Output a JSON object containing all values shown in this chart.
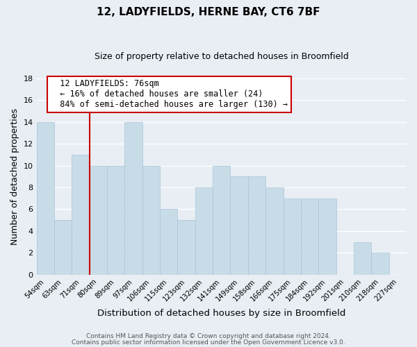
{
  "title": "12, LADYFIELDS, HERNE BAY, CT6 7BF",
  "subtitle": "Size of property relative to detached houses in Broomfield",
  "xlabel": "Distribution of detached houses by size in Broomfield",
  "ylabel": "Number of detached properties",
  "footer_line1": "Contains HM Land Registry data © Crown copyright and database right 2024.",
  "footer_line2": "Contains public sector information licensed under the Open Government Licence v3.0.",
  "bar_labels": [
    "54sqm",
    "63sqm",
    "71sqm",
    "80sqm",
    "89sqm",
    "97sqm",
    "106sqm",
    "115sqm",
    "123sqm",
    "132sqm",
    "141sqm",
    "149sqm",
    "158sqm",
    "166sqm",
    "175sqm",
    "184sqm",
    "192sqm",
    "201sqm",
    "210sqm",
    "218sqm",
    "227sqm"
  ],
  "bar_values": [
    14,
    5,
    11,
    10,
    10,
    14,
    10,
    6,
    5,
    8,
    10,
    9,
    9,
    8,
    7,
    7,
    7,
    0,
    3,
    2,
    0
  ],
  "bar_color": "#c8dce8",
  "bar_edge_color": "#aac4d8",
  "annotation_title": "12 LADYFIELDS: 76sqm",
  "annotation_line1": "← 16% of detached houses are smaller (24)",
  "annotation_line2": "84% of semi-detached houses are larger (130) →",
  "annotation_box_facecolor": "#ffffff",
  "annotation_box_edgecolor": "#cc0000",
  "line_color": "#cc0000",
  "ylim": [
    0,
    18
  ],
  "yticks": [
    0,
    2,
    4,
    6,
    8,
    10,
    12,
    14,
    16,
    18
  ],
  "background_color": "#e8eef4",
  "grid_color": "#ffffff",
  "title_fontsize": 11,
  "subtitle_fontsize": 9
}
